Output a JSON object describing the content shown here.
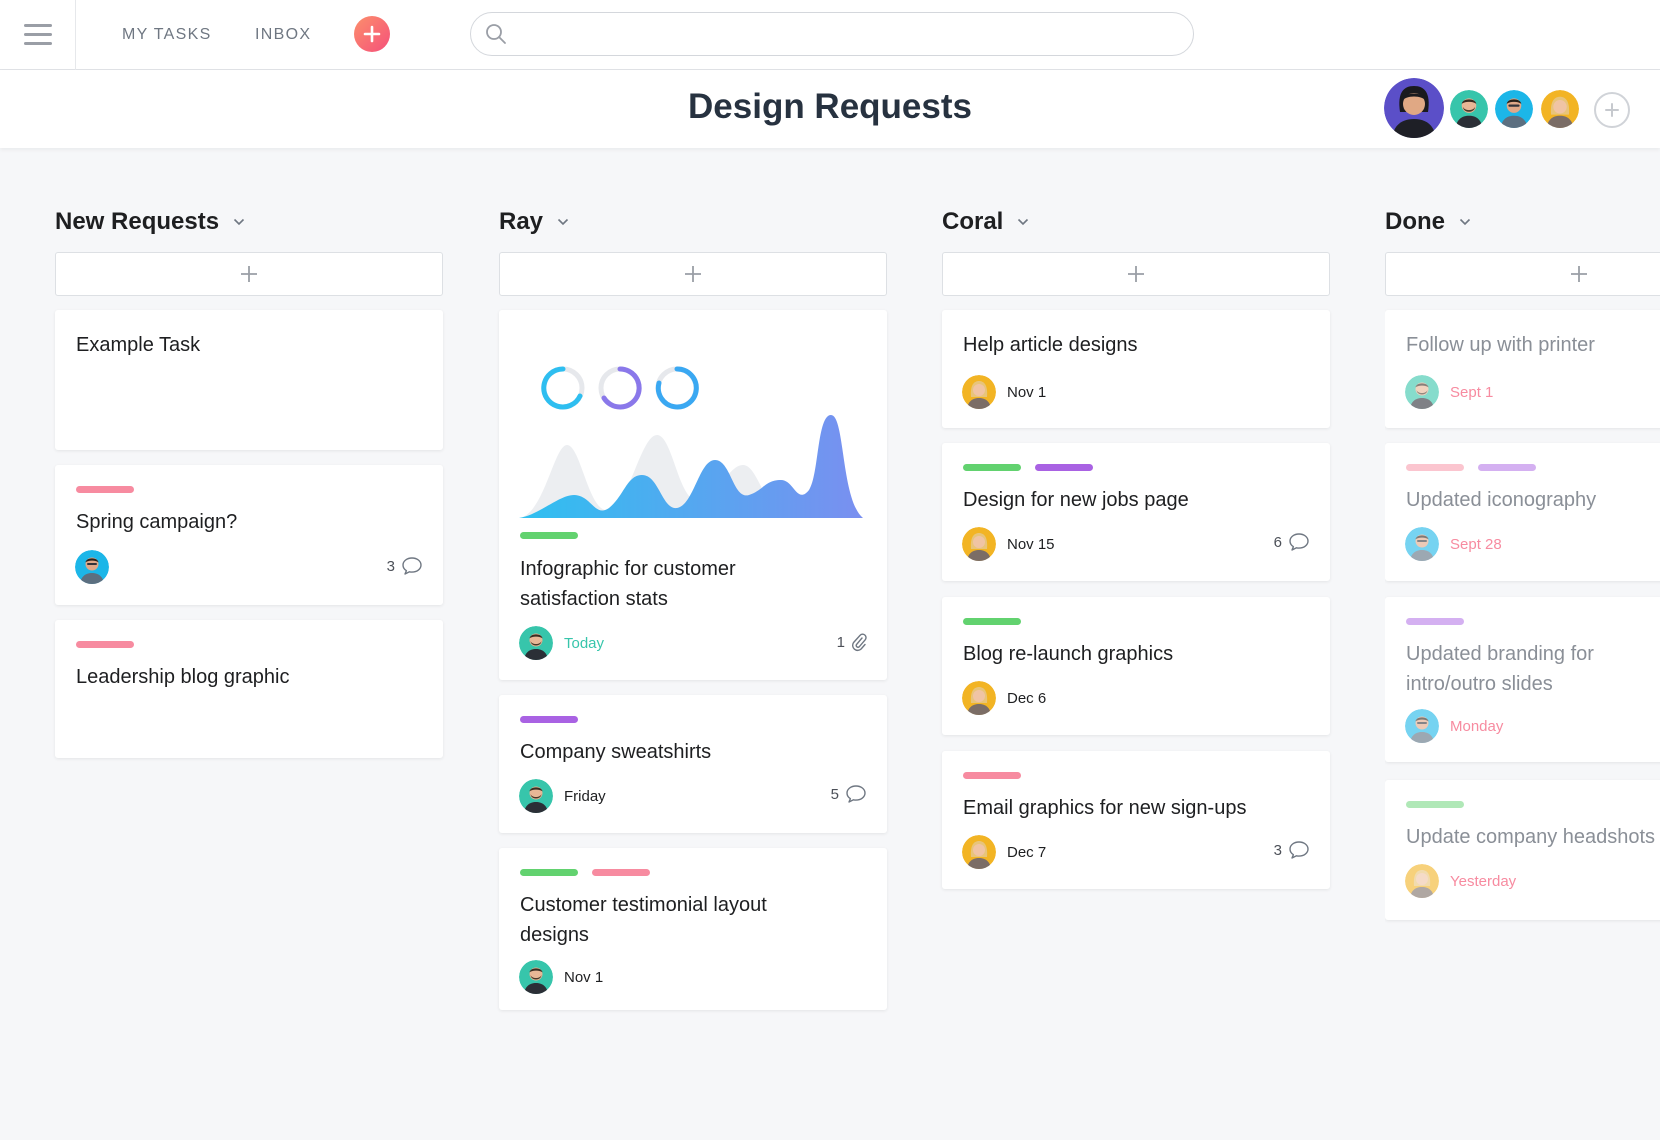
{
  "topbar": {
    "my_tasks": "MY TASKS",
    "inbox": "INBOX",
    "search_placeholder": ""
  },
  "header": {
    "title": "Design Requests"
  },
  "colors": {
    "pink": "#f78ba0",
    "green": "#62d26f",
    "purple": "#a962e3",
    "teal": "#37c5ab",
    "accent": "#f5507a"
  },
  "columns": [
    {
      "title": "New Requests",
      "cards": [
        {
          "title": "Example Task"
        },
        {
          "title": "Spring campaign?",
          "comments": "3"
        },
        {
          "title": "Leadership blog graphic"
        }
      ]
    },
    {
      "title": "Ray",
      "cards": [
        {
          "title": "Infographic for customer satisfaction stats",
          "due": "Today",
          "attachments": "1"
        },
        {
          "title": "Company sweatshirts",
          "due": "Friday",
          "comments": "5"
        },
        {
          "title": "Customer testimonial layout designs",
          "due": "Nov 1"
        }
      ]
    },
    {
      "title": "Coral",
      "cards": [
        {
          "title": "Help article designs",
          "due": "Nov 1"
        },
        {
          "title": "Design for new jobs page",
          "due": "Nov 15",
          "comments": "6"
        },
        {
          "title": "Blog re-launch graphics",
          "due": "Dec 6"
        },
        {
          "title": "Email graphics for new sign-ups",
          "due": "Dec 7",
          "comments": "3"
        }
      ]
    },
    {
      "title": "Done",
      "cards": [
        {
          "title": "Follow up with printer",
          "due": "Sept 1"
        },
        {
          "title": "Updated iconography",
          "due": "Sept 28"
        },
        {
          "title": "Updated branding for intro/outro slides",
          "due": "Monday"
        },
        {
          "title": "Update company headshots",
          "due": "Yesterday"
        }
      ]
    }
  ]
}
